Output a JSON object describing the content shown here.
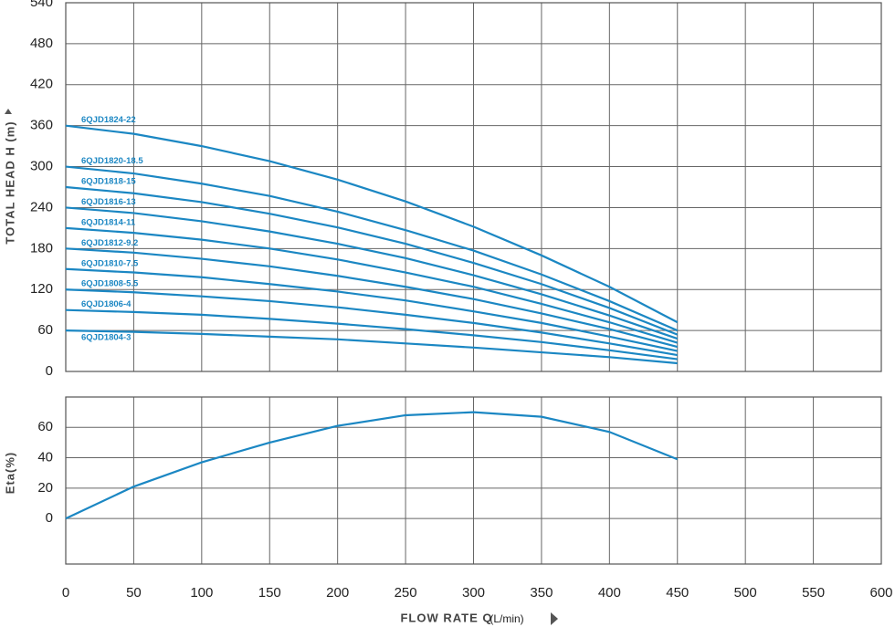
{
  "chart_data": [
    {
      "type": "line",
      "y_label": "TOTAL HEAD H (m)",
      "x": [
        0,
        50,
        100,
        150,
        200,
        250,
        300,
        350,
        400,
        450
      ],
      "xlim": [
        0,
        600
      ],
      "ylim": [
        0,
        540
      ],
      "yticks": [
        0,
        60,
        120,
        180,
        240,
        300,
        360,
        420,
        480,
        540
      ],
      "grid": true,
      "series": [
        {
          "name": "6QJD1824-22",
          "color": "#1b87c3",
          "values": [
            360,
            348,
            330,
            308,
            281,
            249,
            212,
            170,
            124,
            72
          ]
        },
        {
          "name": "6QJD1820-18.5",
          "color": "#1b87c3",
          "values": [
            300,
            290,
            275,
            257,
            234,
            207,
            177,
            142,
            103,
            60
          ]
        },
        {
          "name": "6QJD1818-15",
          "color": "#1b87c3",
          "values": [
            270,
            261,
            248,
            231,
            211,
            187,
            159,
            128,
            93,
            54
          ]
        },
        {
          "name": "6QJD1816-13",
          "color": "#1b87c3",
          "values": [
            240,
            232,
            220,
            205,
            187,
            166,
            141,
            113,
            82,
            48
          ]
        },
        {
          "name": "6QJD1814-11",
          "color": "#1b87c3",
          "values": [
            210,
            203,
            193,
            180,
            164,
            145,
            124,
            99,
            72,
            42
          ]
        },
        {
          "name": "6QJD1812-9.2",
          "color": "#1b87c3",
          "values": [
            180,
            174,
            165,
            154,
            140,
            124,
            106,
            85,
            62,
            36
          ]
        },
        {
          "name": "6QJD1810-7.5",
          "color": "#1b87c3",
          "values": [
            150,
            145,
            138,
            128,
            117,
            104,
            88,
            71,
            51,
            30
          ]
        },
        {
          "name": "6QJD1808-5.5",
          "color": "#1b87c3",
          "values": [
            120,
            116,
            110,
            103,
            94,
            83,
            71,
            57,
            41,
            24
          ]
        },
        {
          "name": "6QJD1806-4",
          "color": "#1b87c3",
          "values": [
            90,
            87,
            83,
            77,
            70,
            62,
            53,
            43,
            31,
            18
          ]
        },
        {
          "name": "6QJD1804-3",
          "color": "#1b87c3",
          "values": [
            60,
            58,
            55,
            51,
            47,
            41,
            35,
            28,
            21,
            12
          ]
        }
      ]
    },
    {
      "type": "line",
      "y_label": "Eta(%)",
      "x_label": "FLOW RATE Q",
      "x_unit": "(L/min)",
      "x": [
        0,
        50,
        100,
        150,
        200,
        250,
        300,
        350,
        400,
        450
      ],
      "xlim": [
        0,
        600
      ],
      "xticks": [
        0,
        50,
        100,
        150,
        200,
        250,
        300,
        350,
        400,
        450,
        500,
        550,
        600
      ],
      "ylim": [
        -30,
        80
      ],
      "yticks": [
        0,
        20,
        40,
        60
      ],
      "grid": true,
      "series": [
        {
          "color": "#1b87c3",
          "values": [
            0,
            21,
            37,
            50,
            61,
            68,
            70,
            67,
            57,
            39
          ]
        }
      ]
    }
  ]
}
